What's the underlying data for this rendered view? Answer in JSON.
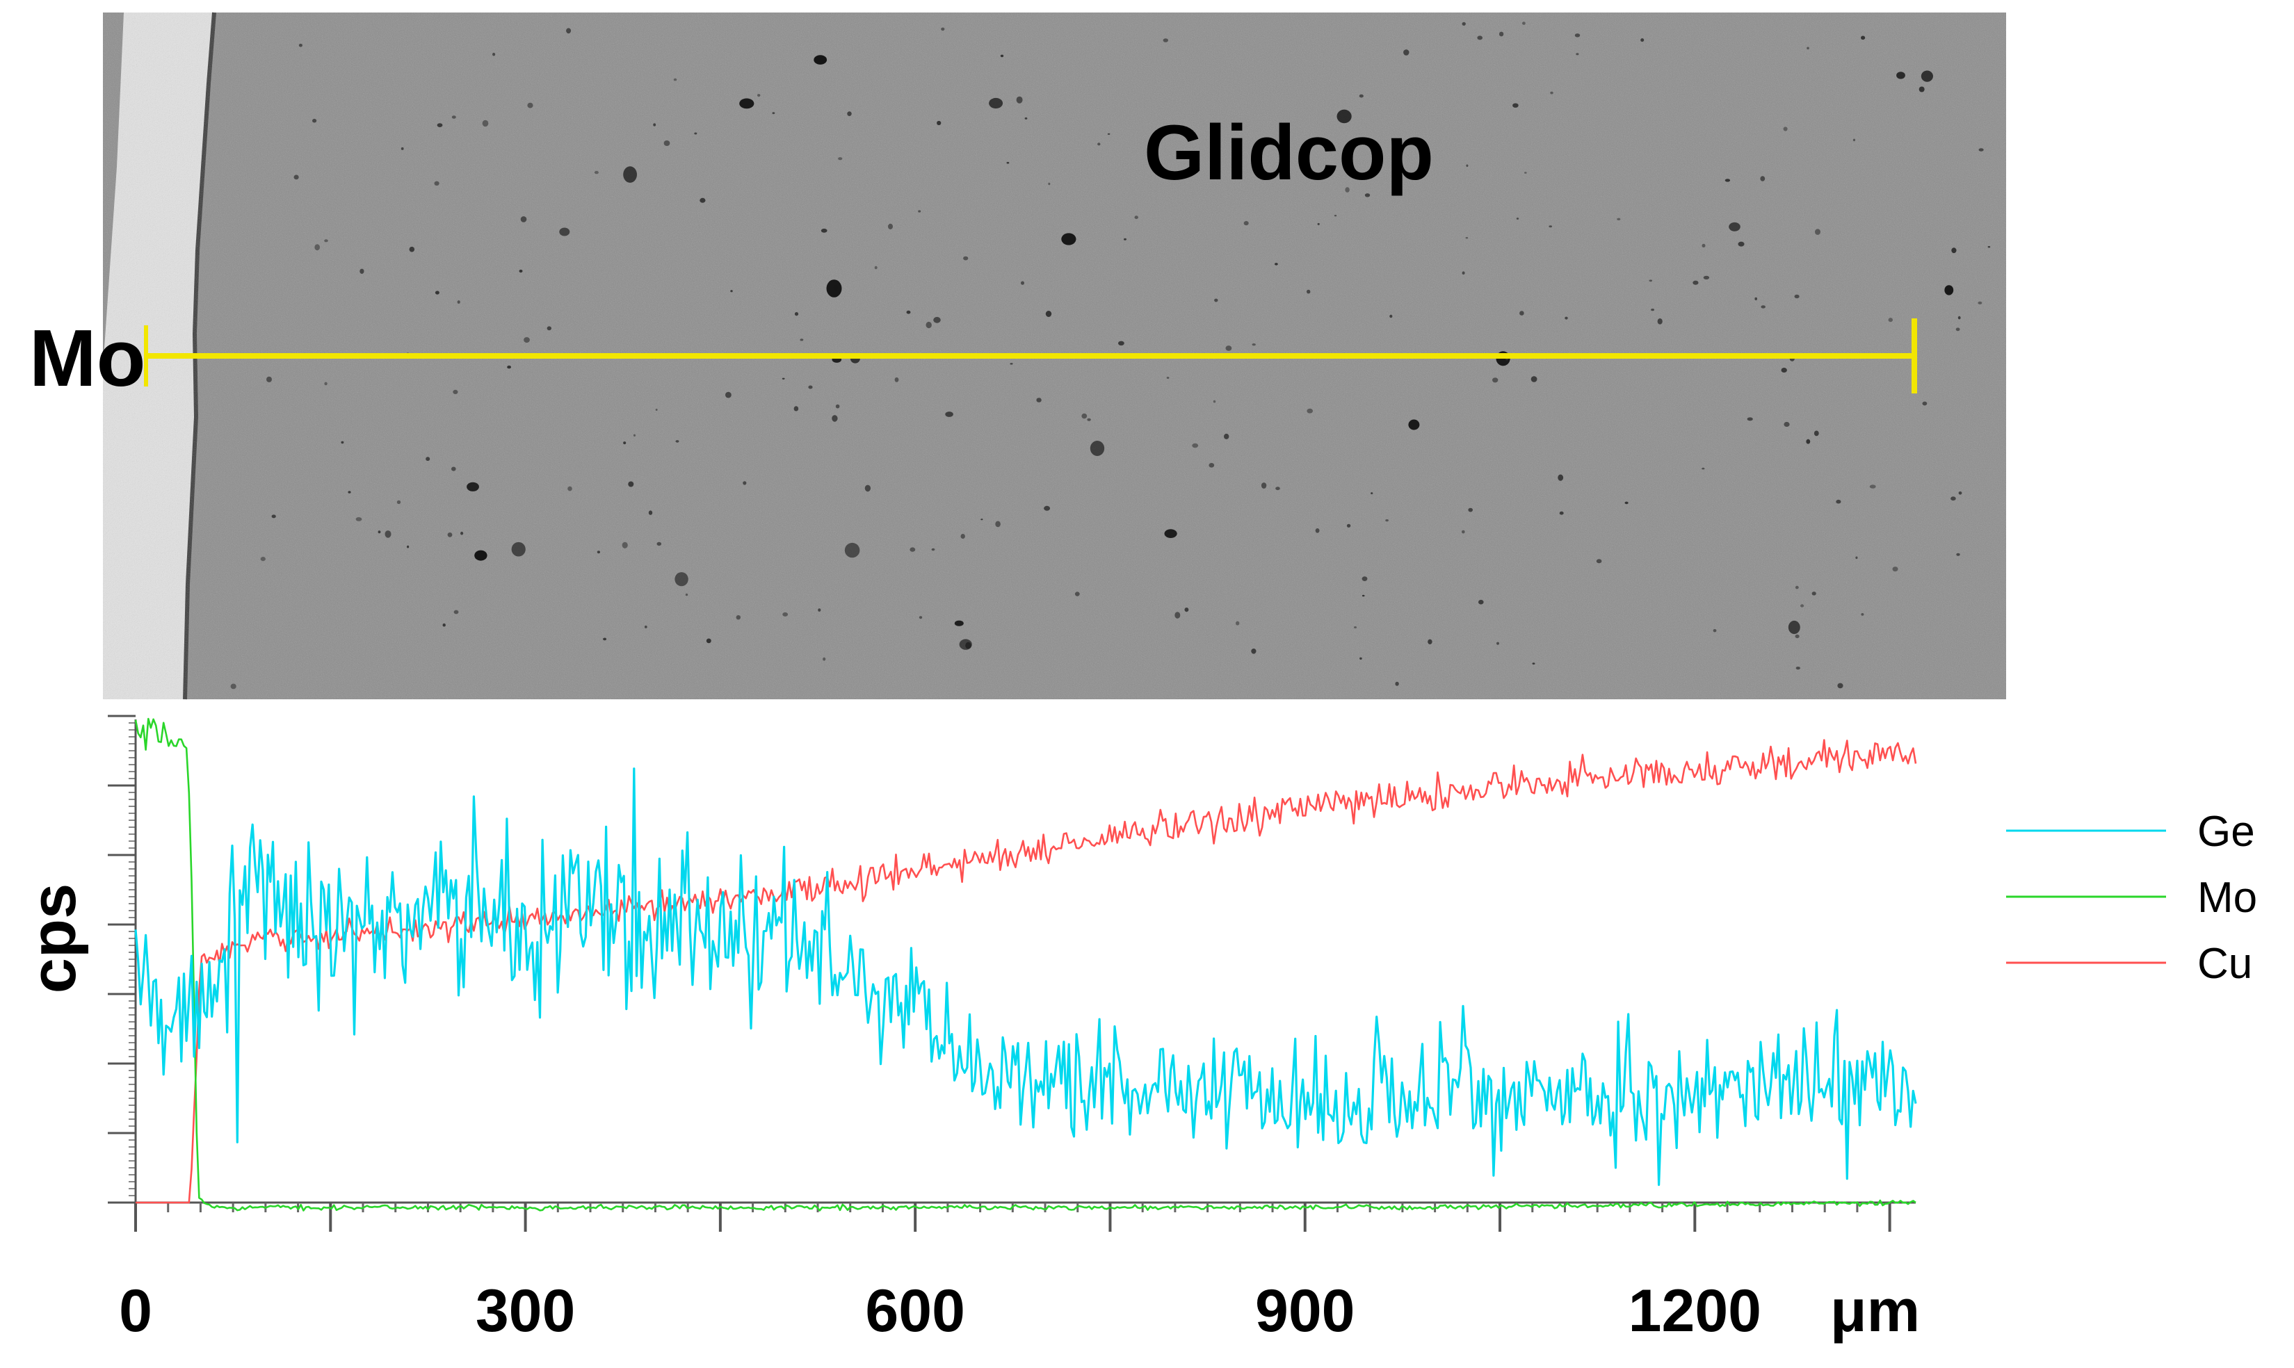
{
  "chart_data": {
    "type": "line",
    "micrograph": {
      "region_labels": {
        "left_material": "Mo",
        "right_material": "Glidcop"
      },
      "scan_line_color": "#f2e600"
    },
    "ylabel": "cps",
    "xlabel": "μm",
    "x_ticks": [
      "0",
      "300",
      "600",
      "900",
      "1200"
    ],
    "x_tick_values": [
      0,
      300,
      600,
      900,
      1200
    ],
    "xlim": [
      0,
      1370
    ],
    "ylim": [
      0,
      100
    ],
    "grid": false,
    "legend_position": "right",
    "series": [
      {
        "name": "Ge",
        "color": "#00d8ee",
        "x": [
          0,
          20,
          40,
          60,
          80,
          100,
          150,
          200,
          250,
          300,
          350,
          400,
          450,
          500,
          550,
          580,
          600,
          650,
          700,
          750,
          800,
          850,
          900,
          950,
          1000,
          1050,
          1100,
          1150,
          1200,
          1250,
          1300,
          1370
        ],
        "values": [
          50,
          40,
          38,
          50,
          60,
          62,
          57,
          58,
          60,
          59,
          59,
          57,
          56,
          53,
          48,
          43,
          34,
          28,
          25,
          24,
          23,
          23,
          22,
          22,
          23,
          22,
          23,
          21,
          23,
          24,
          25,
          24
        ],
        "amplitude": [
          8,
          10,
          10,
          14,
          16,
          14,
          13,
          13,
          14,
          13,
          13,
          13,
          13,
          13,
          12,
          12,
          11,
          10,
          9,
          9,
          9,
          9,
          9,
          9,
          9,
          9,
          9,
          9,
          9,
          9,
          9,
          9
        ]
      },
      {
        "name": "Mo",
        "color": "#2ad62a",
        "x": [
          0,
          38,
          42,
          48,
          60,
          200,
          600,
          1000,
          1370
        ],
        "values": [
          96,
          95,
          80,
          1,
          -1,
          -1,
          -1,
          -1,
          0
        ],
        "amplitude": [
          3,
          3,
          2,
          0.5,
          0.4,
          0.4,
          0.4,
          0.4,
          0.4
        ]
      },
      {
        "name": "Cu",
        "color": "#ff5050",
        "x": [
          0,
          20,
          42,
          50,
          100,
          200,
          300,
          400,
          500,
          600,
          700,
          800,
          900,
          1000,
          1100,
          1200,
          1300,
          1370
        ],
        "values": [
          0,
          0,
          0,
          50,
          54,
          56,
          58,
          61,
          64,
          68,
          73,
          77,
          81,
          84,
          87,
          89,
          91,
          92
        ],
        "amplitude": [
          0,
          0,
          0,
          2,
          2,
          2,
          2,
          2,
          2.5,
          3,
          3,
          3,
          3,
          3,
          3,
          3,
          3,
          3
        ]
      }
    ]
  }
}
